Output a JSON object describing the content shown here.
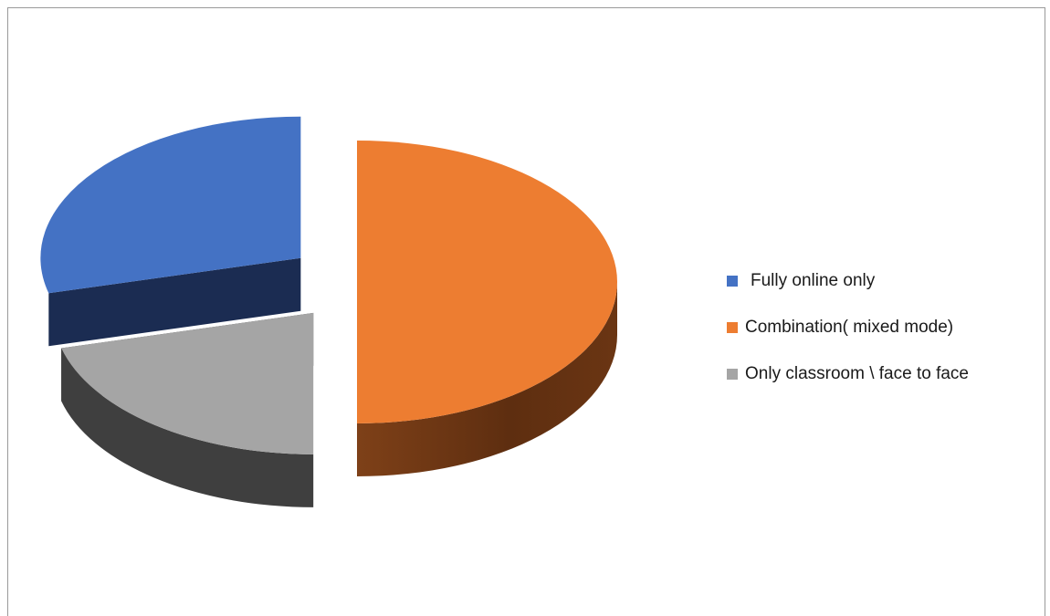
{
  "chart_data": {
    "type": "pie",
    "style": "3d-exploded",
    "title": "",
    "slices": [
      {
        "label": "Fully online only",
        "value": 29,
        "color": "#4472C4",
        "dark": "#1B2C52"
      },
      {
        "label": "Combination( mixed mode)",
        "value": 50,
        "color": "#ED7D31",
        "dark": "#5E2E10"
      },
      {
        "label": "Only classroom \\ face to face",
        "value": 21,
        "color": "#A5A5A5",
        "dark": "#3F3F3F"
      }
    ],
    "legend_position": "right"
  }
}
